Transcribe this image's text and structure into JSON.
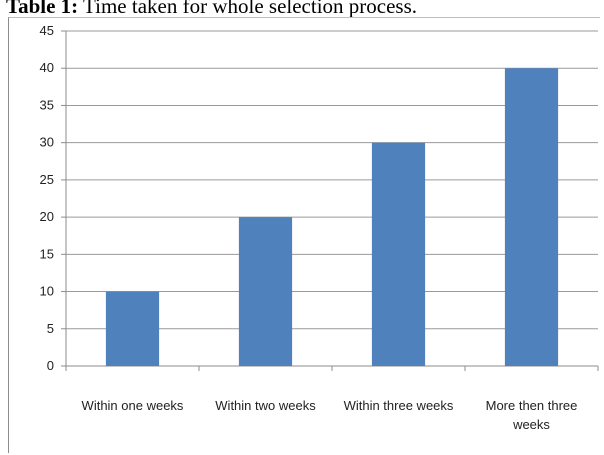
{
  "caption": {
    "lead": "Table 1:",
    "text": " Time taken for whole selection process."
  },
  "colors": {
    "bar": "#4f81bd",
    "grid": "#9a9a9a",
    "axis": "#8c8c8c"
  },
  "chart_data": {
    "type": "bar",
    "categories": [
      [
        "Within one weeks"
      ],
      [
        "Within two weeks"
      ],
      [
        "Within three weeks"
      ],
      [
        "More then three",
        "weeks"
      ]
    ],
    "values": [
      10,
      20,
      30,
      40
    ],
    "title": "",
    "xlabel": "",
    "ylabel": "",
    "ylim": [
      0,
      45
    ],
    "yticks": [
      "0",
      "5",
      "10",
      "15",
      "20",
      "25",
      "30",
      "35",
      "40",
      "45"
    ],
    "grid": true,
    "legend": "none"
  }
}
